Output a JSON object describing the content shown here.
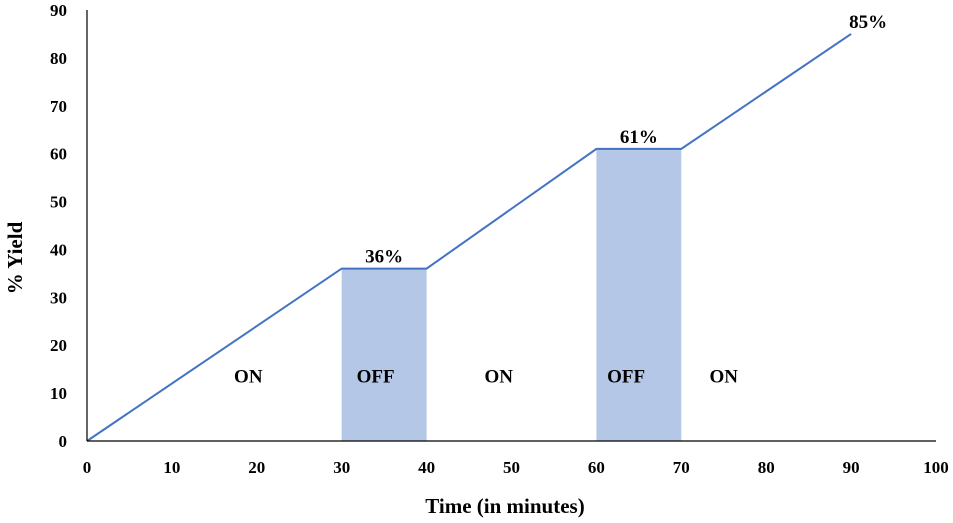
{
  "chart_data": {
    "type": "line",
    "title": "",
    "xlabel": "Time (in minutes)",
    "ylabel": "% Yield",
    "xlim": [
      0,
      100
    ],
    "ylim": [
      0,
      90
    ],
    "x_ticks": [
      0,
      10,
      20,
      30,
      40,
      50,
      60,
      70,
      80,
      90,
      100
    ],
    "y_ticks": [
      0,
      10,
      20,
      30,
      40,
      50,
      60,
      70,
      80,
      90
    ],
    "grid": false,
    "series": [
      {
        "color": "#4472C4",
        "x": [
          0,
          30,
          40,
          60,
          70,
          90
        ],
        "y": [
          0,
          36,
          36,
          61,
          61,
          85
        ]
      }
    ],
    "shaded_regions": [
      {
        "x_start": 30,
        "x_end": 40,
        "y_end": 36,
        "color": "#B4C7E7"
      },
      {
        "x_start": 60,
        "x_end": 70,
        "y_end": 61,
        "color": "#B4C7E7"
      }
    ],
    "annotations": [
      {
        "text": "36%",
        "x": 35,
        "y": 36
      },
      {
        "text": "61%",
        "x": 65,
        "y": 61
      },
      {
        "text": "85%",
        "x": 92,
        "y": 85
      },
      {
        "text": "ON",
        "x": 19,
        "y": 11
      },
      {
        "text": "OFF",
        "x": 34,
        "y": 11
      },
      {
        "text": "ON",
        "x": 48.5,
        "y": 11
      },
      {
        "text": "OFF",
        "x": 63.5,
        "y": 11
      },
      {
        "text": "ON",
        "x": 75,
        "y": 11
      }
    ]
  }
}
